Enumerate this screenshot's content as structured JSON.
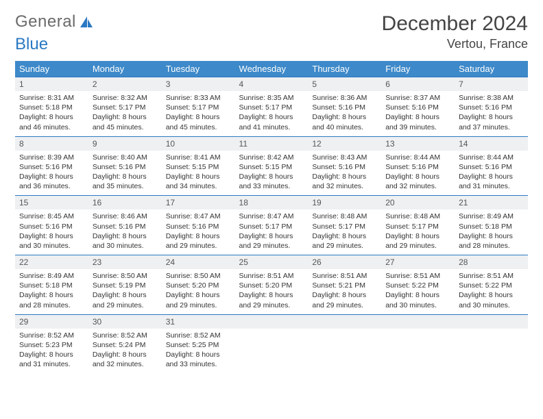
{
  "brand": {
    "word1": "General",
    "word2": "Blue"
  },
  "header": {
    "title": "December 2024",
    "location": "Vertou, France"
  },
  "colors": {
    "header_bg": "#3d89c9",
    "header_fg": "#ffffff",
    "rule": "#2a79c3",
    "daynum_bg": "#eef0f2",
    "text": "#333333"
  },
  "calendar": {
    "type": "table",
    "columns": [
      "Sunday",
      "Monday",
      "Tuesday",
      "Wednesday",
      "Thursday",
      "Friday",
      "Saturday"
    ],
    "weeks": [
      [
        {
          "n": 1,
          "sr": "8:31 AM",
          "ss": "5:18 PM",
          "dl": "8 hours and 46 minutes."
        },
        {
          "n": 2,
          "sr": "8:32 AM",
          "ss": "5:17 PM",
          "dl": "8 hours and 45 minutes."
        },
        {
          "n": 3,
          "sr": "8:33 AM",
          "ss": "5:17 PM",
          "dl": "8 hours and 45 minutes."
        },
        {
          "n": 4,
          "sr": "8:35 AM",
          "ss": "5:17 PM",
          "dl": "8 hours and 41 minutes."
        },
        {
          "n": 5,
          "sr": "8:36 AM",
          "ss": "5:16 PM",
          "dl": "8 hours and 40 minutes."
        },
        {
          "n": 6,
          "sr": "8:37 AM",
          "ss": "5:16 PM",
          "dl": "8 hours and 39 minutes."
        },
        {
          "n": 7,
          "sr": "8:38 AM",
          "ss": "5:16 PM",
          "dl": "8 hours and 37 minutes."
        }
      ],
      [
        {
          "n": 8,
          "sr": "8:39 AM",
          "ss": "5:16 PM",
          "dl": "8 hours and 36 minutes."
        },
        {
          "n": 9,
          "sr": "8:40 AM",
          "ss": "5:16 PM",
          "dl": "8 hours and 35 minutes."
        },
        {
          "n": 10,
          "sr": "8:41 AM",
          "ss": "5:15 PM",
          "dl": "8 hours and 34 minutes."
        },
        {
          "n": 11,
          "sr": "8:42 AM",
          "ss": "5:15 PM",
          "dl": "8 hours and 33 minutes."
        },
        {
          "n": 12,
          "sr": "8:43 AM",
          "ss": "5:16 PM",
          "dl": "8 hours and 32 minutes."
        },
        {
          "n": 13,
          "sr": "8:44 AM",
          "ss": "5:16 PM",
          "dl": "8 hours and 32 minutes."
        },
        {
          "n": 14,
          "sr": "8:44 AM",
          "ss": "5:16 PM",
          "dl": "8 hours and 31 minutes."
        }
      ],
      [
        {
          "n": 15,
          "sr": "8:45 AM",
          "ss": "5:16 PM",
          "dl": "8 hours and 30 minutes."
        },
        {
          "n": 16,
          "sr": "8:46 AM",
          "ss": "5:16 PM",
          "dl": "8 hours and 30 minutes."
        },
        {
          "n": 17,
          "sr": "8:47 AM",
          "ss": "5:16 PM",
          "dl": "8 hours and 29 minutes."
        },
        {
          "n": 18,
          "sr": "8:47 AM",
          "ss": "5:17 PM",
          "dl": "8 hours and 29 minutes."
        },
        {
          "n": 19,
          "sr": "8:48 AM",
          "ss": "5:17 PM",
          "dl": "8 hours and 29 minutes."
        },
        {
          "n": 20,
          "sr": "8:48 AM",
          "ss": "5:17 PM",
          "dl": "8 hours and 29 minutes."
        },
        {
          "n": 21,
          "sr": "8:49 AM",
          "ss": "5:18 PM",
          "dl": "8 hours and 28 minutes."
        }
      ],
      [
        {
          "n": 22,
          "sr": "8:49 AM",
          "ss": "5:18 PM",
          "dl": "8 hours and 28 minutes."
        },
        {
          "n": 23,
          "sr": "8:50 AM",
          "ss": "5:19 PM",
          "dl": "8 hours and 29 minutes."
        },
        {
          "n": 24,
          "sr": "8:50 AM",
          "ss": "5:20 PM",
          "dl": "8 hours and 29 minutes."
        },
        {
          "n": 25,
          "sr": "8:51 AM",
          "ss": "5:20 PM",
          "dl": "8 hours and 29 minutes."
        },
        {
          "n": 26,
          "sr": "8:51 AM",
          "ss": "5:21 PM",
          "dl": "8 hours and 29 minutes."
        },
        {
          "n": 27,
          "sr": "8:51 AM",
          "ss": "5:22 PM",
          "dl": "8 hours and 30 minutes."
        },
        {
          "n": 28,
          "sr": "8:51 AM",
          "ss": "5:22 PM",
          "dl": "8 hours and 30 minutes."
        }
      ],
      [
        {
          "n": 29,
          "sr": "8:52 AM",
          "ss": "5:23 PM",
          "dl": "8 hours and 31 minutes."
        },
        {
          "n": 30,
          "sr": "8:52 AM",
          "ss": "5:24 PM",
          "dl": "8 hours and 32 minutes."
        },
        {
          "n": 31,
          "sr": "8:52 AM",
          "ss": "5:25 PM",
          "dl": "8 hours and 33 minutes."
        },
        null,
        null,
        null,
        null
      ]
    ],
    "labels": {
      "sunrise": "Sunrise:",
      "sunset": "Sunset:",
      "daylight": "Daylight:"
    }
  }
}
